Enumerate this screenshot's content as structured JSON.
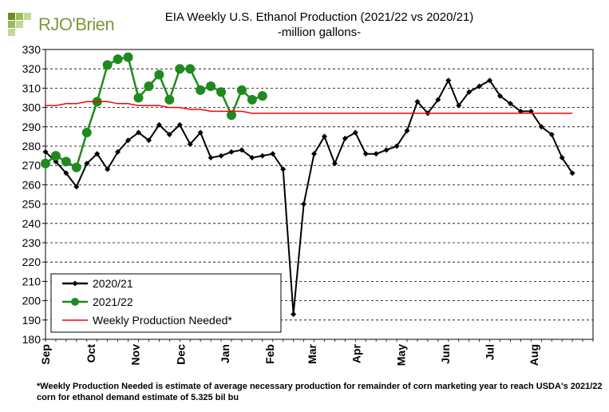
{
  "logo": {
    "text": "RJO'Brien"
  },
  "chart_data": {
    "type": "line",
    "title": "EIA Weekly U.S. Ethanol Production (2021/22 vs 2020/21)",
    "subtitle": "-million  gallons-",
    "ylim": [
      180,
      330
    ],
    "y_ticks": [
      180,
      190,
      200,
      210,
      220,
      230,
      240,
      250,
      260,
      270,
      280,
      290,
      300,
      310,
      320,
      330
    ],
    "grid": "horizontal dashed",
    "legend_position": "bottom-left",
    "x_tick_labels": [
      "Sep",
      "Oct",
      "Nov",
      "Dec",
      "Jan",
      "Feb",
      "Mar",
      "Apr",
      "May",
      "Jun",
      "Jul",
      "Aug"
    ],
    "x_week_count": 53,
    "series": [
      {
        "name": "2020/21",
        "color": "#000000",
        "marker": "diamond",
        "values": [
          277,
          272,
          266,
          259,
          271,
          276,
          268,
          277,
          283,
          287,
          283,
          291,
          286,
          291,
          281,
          287,
          274,
          275,
          277,
          278,
          274,
          275,
          276,
          268,
          193,
          250,
          276,
          285,
          271,
          284,
          287,
          276,
          276,
          278,
          280,
          288,
          303,
          297,
          304,
          314,
          301,
          308,
          311,
          314,
          306,
          302,
          298,
          298,
          290,
          286,
          274,
          266
        ]
      },
      {
        "name": "2021/22",
        "color": "#1f8a1f",
        "marker": "circle",
        "values": [
          271,
          275,
          272,
          269,
          287,
          303,
          322,
          325,
          326,
          305,
          311,
          317,
          304,
          320,
          320,
          309,
          311,
          308,
          296,
          309,
          304,
          306
        ]
      },
      {
        "name": "Weekly Production Needed*",
        "color": "#ff0000",
        "marker": "none",
        "values": [
          301,
          301,
          302,
          302,
          303,
          303,
          303,
          302,
          302,
          301,
          301,
          301,
          300,
          300,
          299,
          299,
          298,
          298,
          298,
          298,
          297,
          297,
          297,
          297,
          297,
          297,
          297,
          297,
          297,
          297,
          297,
          297,
          297,
          297,
          297,
          297,
          297,
          297,
          297,
          297,
          297,
          297,
          297,
          297,
          297,
          297,
          297,
          297,
          297,
          297,
          297,
          297
        ]
      }
    ],
    "footnote": "*Weekly Production Needed is estimate of average necessary production for remainder of corn marketing year to reach USDA's 2021/22 corn for ethanol demand estimate of 5.325 bil bu"
  }
}
